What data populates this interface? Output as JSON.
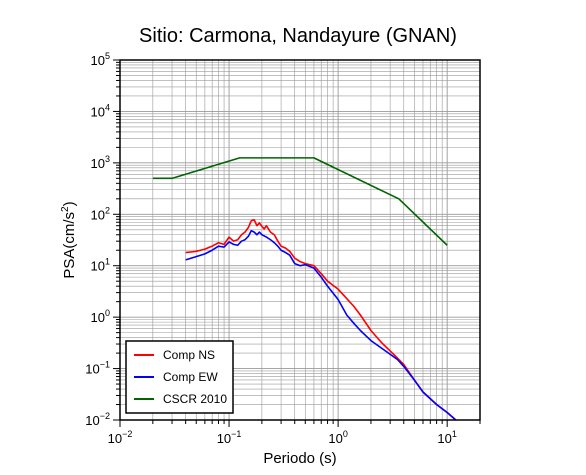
{
  "chart_data": {
    "type": "line",
    "title": "Sitio: Carmona, Nandayure (GNAN)",
    "xlabel": "Periodo (s)",
    "ylabel": {
      "base": "PSA(cm/s",
      "sup": "2",
      "close": ")"
    },
    "x_scale": "log",
    "y_scale": "log",
    "xlim": [
      0.01,
      20
    ],
    "ylim": [
      0.01,
      100000
    ],
    "grid": true,
    "legend_position": "bottom-left",
    "x_ticks": [
      {
        "value": 0.01,
        "base": "10",
        "exp": "−2"
      },
      {
        "value": 0.1,
        "base": "10",
        "exp": "−1"
      },
      {
        "value": 1,
        "base": "10",
        "exp": "0"
      },
      {
        "value": 10,
        "base": "10",
        "exp": "1"
      }
    ],
    "y_ticks": [
      {
        "value": 0.01,
        "base": "10",
        "exp": "−2"
      },
      {
        "value": 0.1,
        "base": "10",
        "exp": "−1"
      },
      {
        "value": 1,
        "base": "10",
        "exp": "0"
      },
      {
        "value": 10,
        "base": "10",
        "exp": "1"
      },
      {
        "value": 100,
        "base": "10",
        "exp": "2"
      },
      {
        "value": 1000,
        "base": "10",
        "exp": "3"
      },
      {
        "value": 10000,
        "base": "10",
        "exp": "4"
      },
      {
        "value": 100000,
        "base": "10",
        "exp": "5"
      }
    ],
    "series": [
      {
        "name": "Comp NS",
        "color": "#ff0000",
        "x": [
          0.04,
          0.05,
          0.06,
          0.07,
          0.08,
          0.09,
          0.1,
          0.11,
          0.12,
          0.13,
          0.14,
          0.15,
          0.16,
          0.17,
          0.18,
          0.19,
          0.2,
          0.21,
          0.22,
          0.24,
          0.26,
          0.28,
          0.3,
          0.33,
          0.36,
          0.4,
          0.45,
          0.5,
          0.6,
          0.7,
          0.8,
          1.0,
          1.2,
          1.4,
          1.6,
          2.0,
          2.5,
          3.0,
          3.5,
          4.0,
          5.0,
          6.0,
          8.0,
          10.0,
          12.0,
          13.0
        ],
        "y": [
          18,
          19,
          21,
          24,
          28,
          26,
          36,
          30,
          32,
          40,
          45,
          55,
          75,
          78,
          60,
          68,
          58,
          52,
          60,
          45,
          40,
          30,
          24,
          22,
          19,
          14,
          12,
          11,
          10,
          7,
          5,
          3.5,
          2.3,
          1.6,
          1.1,
          0.55,
          0.32,
          0.22,
          0.16,
          0.12,
          0.06,
          0.035,
          0.02,
          0.014,
          0.01,
          0.009
        ]
      },
      {
        "name": "Comp EW",
        "color": "#0000ff",
        "x": [
          0.04,
          0.05,
          0.06,
          0.07,
          0.08,
          0.09,
          0.1,
          0.11,
          0.12,
          0.13,
          0.14,
          0.15,
          0.16,
          0.17,
          0.18,
          0.19,
          0.2,
          0.21,
          0.22,
          0.24,
          0.26,
          0.28,
          0.3,
          0.33,
          0.36,
          0.4,
          0.45,
          0.5,
          0.6,
          0.7,
          0.8,
          1.0,
          1.2,
          1.4,
          1.6,
          2.0,
          2.5,
          3.0,
          3.5,
          4.0,
          5.0,
          6.0,
          8.0,
          10.0,
          12.0,
          13.0
        ],
        "y": [
          13,
          15,
          17,
          20,
          24,
          23,
          29,
          26,
          25,
          30,
          32,
          37,
          48,
          45,
          40,
          45,
          40,
          38,
          36,
          32,
          28,
          24,
          20,
          18,
          16,
          11,
          10,
          10.5,
          9,
          6,
          4,
          2.2,
          1.1,
          0.75,
          0.55,
          0.35,
          0.25,
          0.19,
          0.15,
          0.11,
          0.06,
          0.035,
          0.02,
          0.014,
          0.01,
          0.009
        ]
      },
      {
        "name": "CSCR 2010",
        "color": "#006400",
        "x": [
          0.02,
          0.03,
          0.125,
          0.6,
          3.6,
          10.0
        ],
        "y": [
          500,
          500,
          1250,
          1250,
          200,
          25
        ]
      }
    ]
  }
}
